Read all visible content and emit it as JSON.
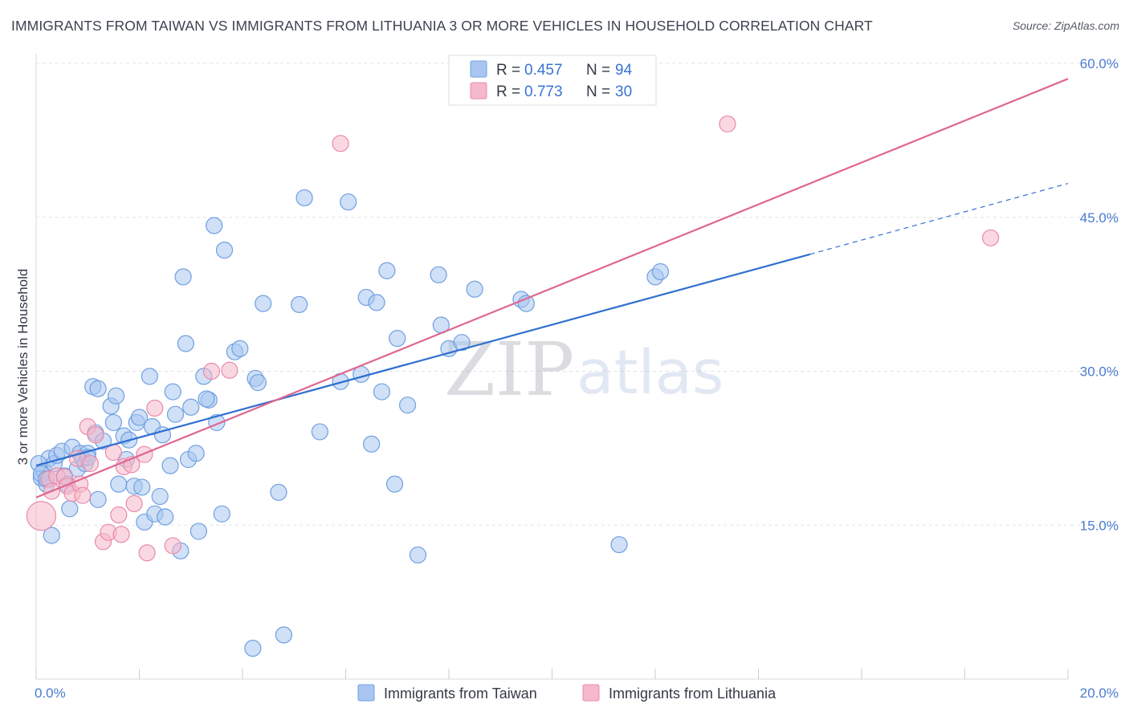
{
  "title": "IMMIGRANTS FROM TAIWAN VS IMMIGRANTS FROM LITHUANIA 3 OR MORE VEHICLES IN HOUSEHOLD CORRELATION CHART",
  "source": "Source: ZipAtlas.com",
  "watermark": {
    "zip": "ZIP",
    "atlas": "atlas"
  },
  "legend": {
    "r_label": "R =",
    "n_label": "N =",
    "series": [
      {
        "r": "0.457",
        "n": "94",
        "color": "#a8c6f0",
        "stroke": "#6f9fe0"
      },
      {
        "r": "0.773",
        "n": "30",
        "color": "#f6b8cb",
        "stroke": "#e98aa8"
      }
    ]
  },
  "bottom_legend": [
    "Immigrants from Taiwan",
    "Immigrants from Lithuania"
  ],
  "chart_data": {
    "type": "scatter",
    "title": "IMMIGRANTS FROM TAIWAN VS IMMIGRANTS FROM LITHUANIA 3 OR MORE VEHICLES IN HOUSEHOLD CORRELATION CHART",
    "xlabel": "",
    "ylabel": "3 or more Vehicles in Household",
    "xlim": [
      0,
      20
    ],
    "ylim": [
      0,
      60
    ],
    "x_tick_labels": [
      "0.0%",
      "20.0%"
    ],
    "y_ticks": [
      15,
      30,
      45,
      60
    ],
    "y_tick_labels": [
      "15.0%",
      "30.0%",
      "45.0%",
      "60.0%"
    ],
    "series": [
      {
        "name": "Immigrants from Taiwan",
        "color": "#a8c6f0",
        "stroke": "#6f9fe0",
        "line_color": "#2f6fd0",
        "trend": {
          "x0": 0.0,
          "y0": 20.8,
          "x1": 15.0,
          "y1": 41.4,
          "dash_to_x": 20.0,
          "dash_to_y": 48.3
        },
        "points": [
          [
            0.1,
            19.6
          ],
          [
            0.15,
            20.3
          ],
          [
            0.2,
            19.0
          ],
          [
            0.25,
            21.5
          ],
          [
            0.3,
            14.0
          ],
          [
            0.35,
            21.0
          ],
          [
            0.4,
            21.8
          ],
          [
            0.5,
            22.2
          ],
          [
            0.55,
            19.8
          ],
          [
            0.6,
            19.0
          ],
          [
            0.65,
            16.6
          ],
          [
            0.7,
            22.6
          ],
          [
            0.8,
            20.5
          ],
          [
            0.85,
            22.0
          ],
          [
            0.9,
            21.5
          ],
          [
            0.95,
            21.0
          ],
          [
            1.0,
            22.0
          ],
          [
            1.1,
            28.5
          ],
          [
            1.15,
            24.0
          ],
          [
            1.2,
            17.5
          ],
          [
            1.3,
            23.2
          ],
          [
            1.45,
            26.6
          ],
          [
            1.5,
            25.0
          ],
          [
            1.55,
            27.6
          ],
          [
            1.6,
            19.0
          ],
          [
            1.7,
            23.7
          ],
          [
            1.75,
            21.4
          ],
          [
            1.8,
            23.3
          ],
          [
            1.9,
            18.8
          ],
          [
            1.95,
            25.0
          ],
          [
            2.0,
            25.5
          ],
          [
            2.05,
            18.7
          ],
          [
            2.1,
            15.3
          ],
          [
            2.2,
            29.5
          ],
          [
            2.25,
            24.6
          ],
          [
            2.3,
            16.1
          ],
          [
            2.4,
            17.8
          ],
          [
            2.45,
            23.8
          ],
          [
            2.5,
            15.8
          ],
          [
            2.6,
            20.8
          ],
          [
            2.65,
            28.0
          ],
          [
            2.7,
            25.8
          ],
          [
            2.8,
            12.5
          ],
          [
            2.85,
            39.2
          ],
          [
            2.9,
            32.7
          ],
          [
            2.95,
            21.4
          ],
          [
            3.0,
            26.5
          ],
          [
            3.1,
            22.0
          ],
          [
            3.15,
            14.4
          ],
          [
            3.25,
            29.5
          ],
          [
            3.35,
            27.2
          ],
          [
            3.45,
            44.2
          ],
          [
            3.5,
            25.0
          ],
          [
            3.6,
            16.1
          ],
          [
            3.65,
            41.8
          ],
          [
            3.85,
            31.9
          ],
          [
            3.95,
            32.2
          ],
          [
            4.2,
            3.0
          ],
          [
            4.25,
            29.3
          ],
          [
            4.3,
            28.9
          ],
          [
            4.4,
            36.6
          ],
          [
            4.7,
            18.2
          ],
          [
            4.8,
            4.3
          ],
          [
            5.1,
            36.5
          ],
          [
            5.2,
            46.9
          ],
          [
            5.5,
            24.1
          ],
          [
            5.9,
            29.0
          ],
          [
            6.05,
            46.5
          ],
          [
            6.3,
            29.7
          ],
          [
            6.4,
            37.2
          ],
          [
            6.5,
            22.9
          ],
          [
            6.6,
            36.7
          ],
          [
            6.7,
            28.0
          ],
          [
            6.8,
            39.8
          ],
          [
            6.95,
            19.0
          ],
          [
            7.0,
            33.2
          ],
          [
            7.2,
            26.7
          ],
          [
            7.4,
            12.1
          ],
          [
            7.8,
            39.4
          ],
          [
            7.85,
            34.5
          ],
          [
            8.0,
            32.2
          ],
          [
            8.25,
            32.8
          ],
          [
            8.5,
            38.0
          ],
          [
            9.4,
            37.0
          ],
          [
            9.5,
            36.6
          ],
          [
            11.3,
            13.1
          ],
          [
            12.0,
            39.2
          ],
          [
            12.1,
            39.7
          ],
          [
            0.05,
            21.0
          ],
          [
            0.1,
            20.0
          ],
          [
            0.2,
            19.5
          ],
          [
            1.2,
            28.3
          ],
          [
            1.0,
            21.6
          ],
          [
            3.3,
            27.3
          ]
        ]
      },
      {
        "name": "Immigrants from Lithuania",
        "color": "#f6b8cb",
        "stroke": "#e98aa8",
        "line_color": "#e0668f",
        "trend": {
          "x0": 0.0,
          "y0": 17.7,
          "x1": 20.0,
          "y1": 58.5
        },
        "points": [
          [
            0.1,
            15.9
          ],
          [
            0.25,
            19.5
          ],
          [
            0.3,
            18.3
          ],
          [
            0.4,
            19.8
          ],
          [
            0.55,
            19.7
          ],
          [
            0.6,
            18.8
          ],
          [
            0.7,
            18.1
          ],
          [
            0.8,
            21.5
          ],
          [
            0.85,
            19.0
          ],
          [
            0.9,
            17.9
          ],
          [
            1.0,
            24.6
          ],
          [
            1.05,
            21.0
          ],
          [
            1.15,
            23.8
          ],
          [
            1.3,
            13.4
          ],
          [
            1.4,
            14.3
          ],
          [
            1.5,
            22.1
          ],
          [
            1.6,
            16.0
          ],
          [
            1.65,
            14.1
          ],
          [
            1.7,
            20.7
          ],
          [
            1.85,
            20.9
          ],
          [
            1.9,
            17.1
          ],
          [
            2.1,
            21.9
          ],
          [
            2.15,
            12.3
          ],
          [
            2.3,
            26.4
          ],
          [
            2.65,
            13.0
          ],
          [
            3.4,
            30.0
          ],
          [
            3.75,
            30.1
          ],
          [
            5.9,
            52.2
          ],
          [
            13.4,
            54.1
          ],
          [
            18.5,
            43.0
          ]
        ]
      }
    ]
  }
}
